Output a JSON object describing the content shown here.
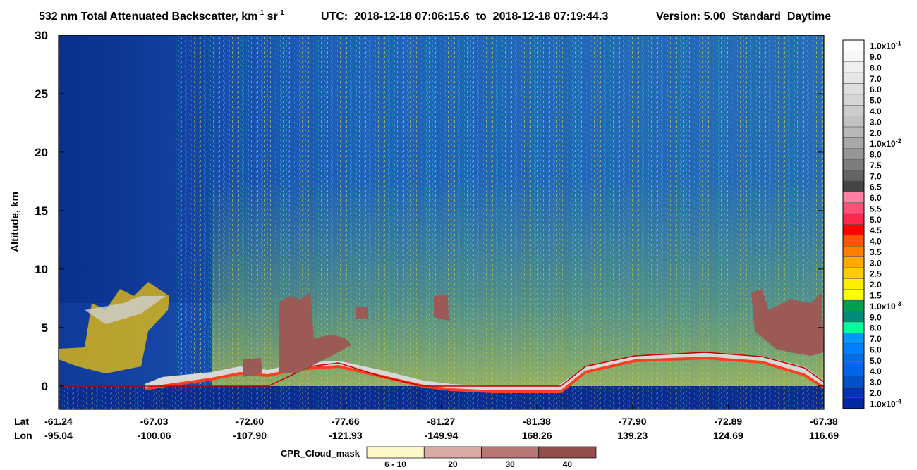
{
  "chart_data": {
    "type": "curtain",
    "title": {
      "text": "532 nm Total Attenuated Backscatter, km",
      "sup1": "-1",
      "unit2": " sr",
      "sup2": "-1"
    },
    "utc": "UTC:  2018-12-18 07:06:15.6  to  2018-12-18 07:19:44.3",
    "version": "Version: 5.00  Standard  Daytime",
    "ylabel": "Altitude, km",
    "ylim": [
      -2,
      30
    ],
    "yticks": [
      0,
      5,
      10,
      15,
      20,
      25,
      30
    ],
    "x_rows": {
      "lat_title": "Lat",
      "lon_title": "Lon",
      "lat": [
        "-61.24",
        "-67.03",
        "-72.60",
        "-77.66",
        "-81.27",
        "-81.38",
        "-77.90",
        "-72.89",
        "-67.38"
      ],
      "lon": [
        "-95.04",
        "-100.06",
        "-107.90",
        "-121.93",
        "-149.94",
        "168.26",
        "139.23",
        "124.69",
        "116.69"
      ]
    },
    "colorbar": [
      {
        "text": "1.0x10",
        "sup": "-1",
        "color": "#ffffff"
      },
      {
        "text": "9.0",
        "color": "#f7f7f7"
      },
      {
        "text": "8.0",
        "color": "#efefef"
      },
      {
        "text": "7.0",
        "color": "#e6e6e6"
      },
      {
        "text": "6.0",
        "color": "#dedede"
      },
      {
        "text": "5.0",
        "color": "#d6d6d6"
      },
      {
        "text": "4.0",
        "color": "#cccccc"
      },
      {
        "text": "3.0",
        "color": "#c2c2c2"
      },
      {
        "text": "2.0",
        "color": "#b8b8b8"
      },
      {
        "text": "1.0x10",
        "sup": "-2",
        "color": "#a8a8a8"
      },
      {
        "text": "8.0",
        "color": "#969696"
      },
      {
        "text": "7.5",
        "color": "#7d7d7d"
      },
      {
        "text": "7.0",
        "color": "#646464"
      },
      {
        "text": "6.5",
        "color": "#454545"
      },
      {
        "text": "6.0",
        "color": "#ff80a0"
      },
      {
        "text": "5.5",
        "color": "#ff5078"
      },
      {
        "text": "5.0",
        "color": "#ff2850"
      },
      {
        "text": "4.5",
        "color": "#ff0000"
      },
      {
        "text": "4.0",
        "color": "#ff5500"
      },
      {
        "text": "3.5",
        "color": "#ff7f00"
      },
      {
        "text": "3.0",
        "color": "#ffaa00"
      },
      {
        "text": "2.5",
        "color": "#ffcc00"
      },
      {
        "text": "2.0",
        "color": "#ffee00"
      },
      {
        "text": "1.5",
        "color": "#ffff00"
      },
      {
        "text": "1.0x10",
        "sup": "-3",
        "color": "#00a050"
      },
      {
        "text": "9.0",
        "color": "#008c78"
      },
      {
        "text": "8.0",
        "color": "#00ffa0"
      },
      {
        "text": "7.0",
        "color": "#0096ff"
      },
      {
        "text": "6.0",
        "color": "#0080ff"
      },
      {
        "text": "5.0",
        "color": "#006ee6"
      },
      {
        "text": "4.0",
        "color": "#0064e6"
      },
      {
        "text": "3.0",
        "color": "#0050c8"
      },
      {
        "text": "2.0",
        "color": "#0032b4"
      },
      {
        "text": "1.0x10",
        "sup": "-4",
        "color": "#0028a0"
      }
    ],
    "cloud_mask": {
      "title": "CPR_Cloud_mask",
      "items": [
        {
          "label": "6 - 10",
          "color": "#fdf8c8"
        },
        {
          "label": "20",
          "color": "#d9a9a6"
        },
        {
          "label": "30",
          "color": "#b77774"
        },
        {
          "label": "40",
          "color": "#934e4b"
        }
      ]
    }
  }
}
